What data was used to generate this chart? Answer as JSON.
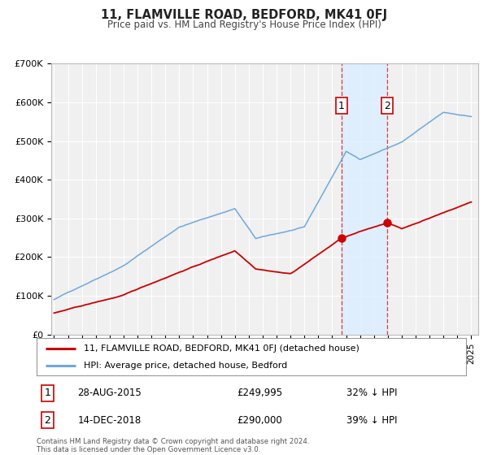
{
  "title": "11, FLAMVILLE ROAD, BEDFORD, MK41 0FJ",
  "subtitle": "Price paid vs. HM Land Registry's House Price Index (HPI)",
  "hpi_color": "#6fa8dc",
  "price_color": "#cc0000",
  "background_color": "#ffffff",
  "plot_bg_color": "#f0f0f0",
  "grid_color": "#ffffff",
  "sale1_date": 2015.66,
  "sale1_price": 249995,
  "sale2_date": 2018.96,
  "sale2_price": 290000,
  "shade_color": "#ddeeff",
  "ylim_max": 700000,
  "ytick_values": [
    0,
    100000,
    200000,
    300000,
    400000,
    500000,
    600000,
    700000
  ],
  "ytick_labels": [
    "£0",
    "£100K",
    "£200K",
    "£300K",
    "£400K",
    "£500K",
    "£600K",
    "£700K"
  ],
  "legend_label1": "11, FLAMVILLE ROAD, BEDFORD, MK41 0FJ (detached house)",
  "legend_label2": "HPI: Average price, detached house, Bedford",
  "table_row1_num": "1",
  "table_row1_date": "28-AUG-2015",
  "table_row1_price": "£249,995",
  "table_row1_hpi": "32% ↓ HPI",
  "table_row2_num": "2",
  "table_row2_date": "14-DEC-2018",
  "table_row2_price": "£290,000",
  "table_row2_hpi": "39% ↓ HPI",
  "footer": "Contains HM Land Registry data © Crown copyright and database right 2024.\nThis data is licensed under the Open Government Licence v3.0."
}
